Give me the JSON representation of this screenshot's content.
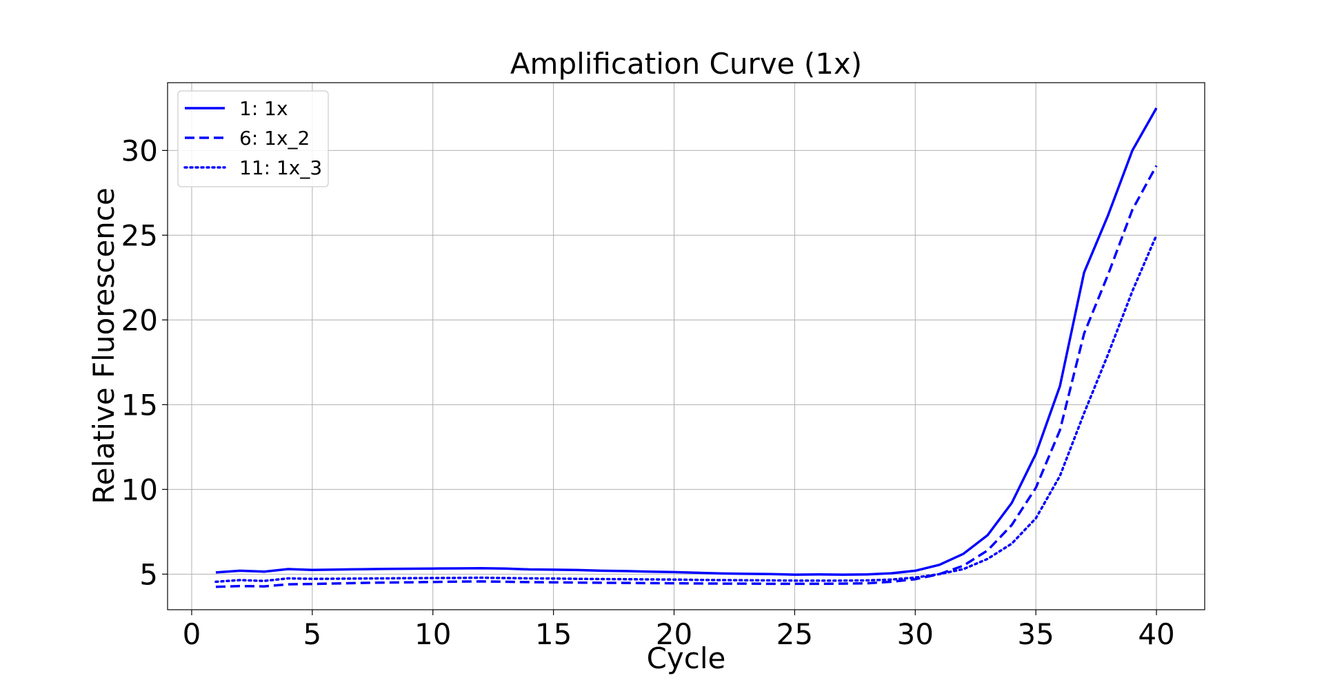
{
  "chart_data": {
    "type": "line",
    "title": "Amplification Curve (1x)",
    "xlabel": "Cycle",
    "ylabel": "Relative Fluorescence",
    "xlim": [
      -1,
      42
    ],
    "ylim": [
      2.9,
      34
    ],
    "xticks": [
      0,
      5,
      10,
      15,
      20,
      25,
      30,
      35,
      40
    ],
    "yticks": [
      5,
      10,
      15,
      20,
      25,
      30
    ],
    "grid": true,
    "legend_position": "top-left",
    "x": [
      1,
      2,
      3,
      4,
      5,
      6,
      7,
      8,
      9,
      10,
      11,
      12,
      13,
      14,
      15,
      16,
      17,
      18,
      19,
      20,
      21,
      22,
      23,
      24,
      25,
      26,
      27,
      28,
      29,
      30,
      31,
      32,
      33,
      34,
      35,
      36,
      37,
      38,
      39,
      40
    ],
    "series": [
      {
        "name": "1: 1x",
        "line_style": "solid",
        "color": "#0000ff",
        "values": [
          5.1,
          5.2,
          5.15,
          5.3,
          5.25,
          5.27,
          5.29,
          5.31,
          5.32,
          5.33,
          5.34,
          5.35,
          5.33,
          5.28,
          5.26,
          5.24,
          5.2,
          5.18,
          5.15,
          5.12,
          5.08,
          5.04,
          5.02,
          5.0,
          4.97,
          4.98,
          4.97,
          4.98,
          5.05,
          5.2,
          5.55,
          6.2,
          7.3,
          9.2,
          12.1,
          16.1,
          22.8,
          26.2,
          30.0,
          32.5
        ]
      },
      {
        "name": "6: 1x_2",
        "line_style": "dashed",
        "color": "#0000ff",
        "values": [
          4.25,
          4.3,
          4.28,
          4.4,
          4.42,
          4.45,
          4.48,
          4.5,
          4.52,
          4.54,
          4.56,
          4.57,
          4.55,
          4.53,
          4.52,
          4.5,
          4.49,
          4.48,
          4.47,
          4.46,
          4.45,
          4.44,
          4.44,
          4.43,
          4.43,
          4.43,
          4.44,
          4.46,
          4.55,
          4.7,
          5.0,
          5.5,
          6.4,
          7.9,
          10.1,
          13.5,
          19.2,
          22.7,
          26.5,
          29.1
        ]
      },
      {
        "name": "11: 1x_3",
        "line_style": "dotted",
        "color": "#0000ff",
        "values": [
          4.55,
          4.65,
          4.6,
          4.75,
          4.72,
          4.73,
          4.74,
          4.75,
          4.76,
          4.77,
          4.78,
          4.79,
          4.77,
          4.75,
          4.74,
          4.72,
          4.71,
          4.7,
          4.69,
          4.68,
          4.66,
          4.65,
          4.64,
          4.63,
          4.62,
          4.62,
          4.62,
          4.63,
          4.68,
          4.8,
          5.0,
          5.3,
          5.9,
          6.8,
          8.3,
          10.8,
          14.5,
          18.0,
          21.7,
          25.0
        ]
      }
    ]
  }
}
